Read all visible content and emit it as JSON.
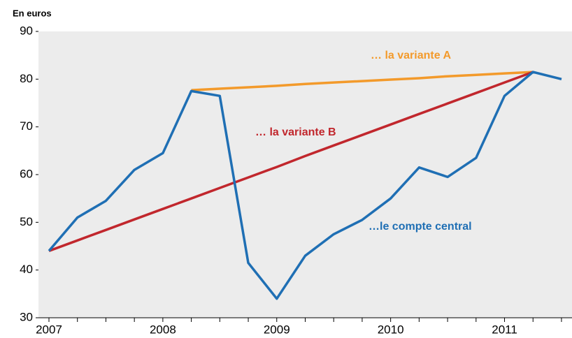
{
  "chart_data": {
    "type": "line",
    "y_label": "En euros",
    "categories": [
      "2007",
      null,
      null,
      null,
      "2008",
      null,
      null,
      null,
      "2009",
      null,
      null,
      null,
      "2010",
      null,
      null,
      null,
      "2011",
      null,
      null
    ],
    "ylim": [
      30,
      90
    ],
    "yticks": [
      30,
      40,
      50,
      60,
      70,
      80,
      90
    ],
    "grid": false,
    "series": [
      {
        "name": "… la variante A",
        "color": "#f39a2b",
        "values": [
          null,
          null,
          null,
          null,
          null,
          77.7,
          78.0,
          78.3,
          78.6,
          79.0,
          79.3,
          79.6,
          79.9,
          80.2,
          80.6,
          80.9,
          81.2,
          81.5,
          null
        ]
      },
      {
        "name": "… la variante B",
        "color": "#c1272d",
        "values": [
          44,
          46.2,
          48.4,
          50.6,
          52.8,
          55.0,
          57.2,
          59.4,
          61.6,
          63.9,
          66.1,
          68.3,
          70.5,
          72.7,
          74.9,
          77.1,
          79.3,
          81.5,
          null
        ]
      },
      {
        "name": "…le compte central",
        "color": "#1f6fb4",
        "values": [
          44,
          51,
          54.5,
          61,
          64.5,
          77.5,
          76.5,
          41.5,
          34,
          43,
          47.5,
          50.5,
          55,
          61.5,
          59.5,
          63.5,
          76.5,
          81.5,
          80
        ]
      }
    ]
  }
}
